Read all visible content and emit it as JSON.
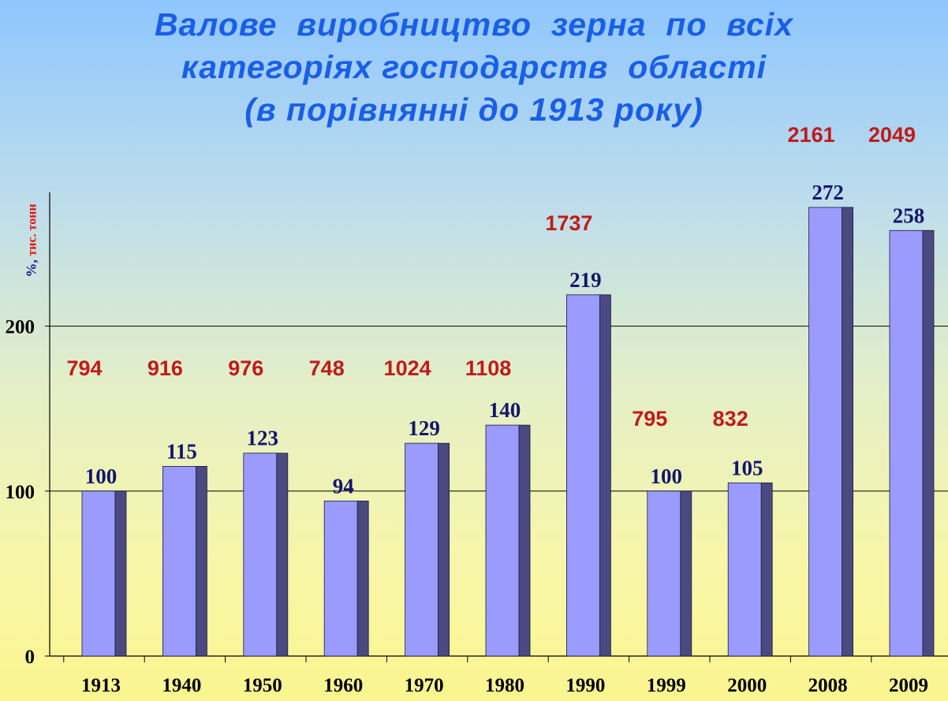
{
  "title_lines": [
    "Валове  виробництво  зерна  по  всіх",
    "категоріях господарств  області",
    "(в порівнянні до 1913 року)"
  ],
  "chart_data": {
    "type": "bar",
    "title": "Валове  виробництво  зерна  по  всіх категоріях господарств  області (в порівнянні до 1913 року)",
    "ylabel_percent": "%,",
    "ylabel_units": "тис. тонн",
    "categories": [
      "1913",
      "1940",
      "1950",
      "1960",
      "1970",
      "1980",
      "1990",
      "1999",
      "2000",
      "2008",
      "2009"
    ],
    "values": [
      100,
      115,
      123,
      94,
      129,
      140,
      219,
      100,
      105,
      272,
      258
    ],
    "tonnes": [
      794,
      916,
      976,
      748,
      1024,
      1108,
      1737,
      795,
      832,
      2161,
      2049
    ],
    "yticks": [
      0,
      100,
      200
    ],
    "ylim": [
      0,
      280
    ],
    "grid": true,
    "colors": {
      "bar_front": "#9b9bfe",
      "bar_side": "#4a4a80",
      "value_label": "#14146b",
      "tonnes_label": "#c11a1a"
    }
  }
}
